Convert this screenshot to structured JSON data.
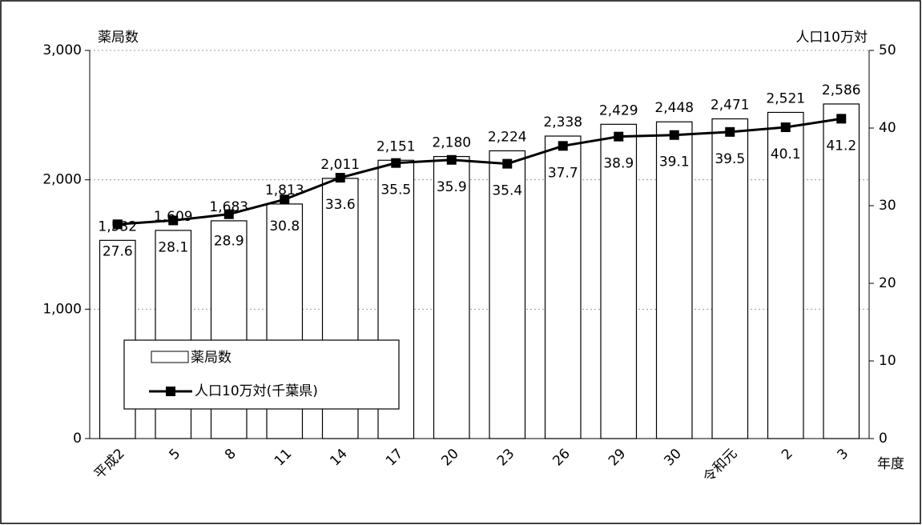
{
  "chart_data": {
    "type": "bar",
    "y_label": "薬局数",
    "y2_label": "人口10万対",
    "x_label": "年度",
    "categories": [
      "平成2",
      "5",
      "8",
      "11",
      "14",
      "17",
      "20",
      "23",
      "26",
      "29",
      "30",
      "令和元",
      "2",
      "3"
    ],
    "series": [
      {
        "name": "薬局数",
        "type": "bar",
        "color": "#ffffff",
        "values": [
          1532,
          1609,
          1683,
          1813,
          2011,
          2151,
          2180,
          2224,
          2338,
          2429,
          2448,
          2471,
          2521,
          2586
        ],
        "value_labels": [
          "1,532",
          "1,609",
          "1,683",
          "1,813",
          "2,011",
          "2,151",
          "2,180",
          "2,224",
          "2,338",
          "2,429",
          "2,448",
          "2,471",
          "2,521",
          "2,586"
        ]
      },
      {
        "name": "人口10万対(千葉県)",
        "type": "line",
        "axis": "y2",
        "color": "#000000",
        "values": [
          27.6,
          28.1,
          28.9,
          30.8,
          33.6,
          35.5,
          35.9,
          35.4,
          37.7,
          38.9,
          39.1,
          39.5,
          40.1,
          41.2
        ]
      }
    ],
    "ylim": [
      0,
      3000
    ],
    "yticks": [
      0,
      {
        "value": 1000,
        "label": "1,000"
      },
      {
        "value": 2000,
        "label": "2,000"
      },
      {
        "value": 3000,
        "label": "3,000"
      }
    ],
    "y2lim": [
      0,
      50
    ],
    "y2ticks": [
      0,
      10,
      20,
      30,
      40,
      50
    ],
    "grid": true
  }
}
